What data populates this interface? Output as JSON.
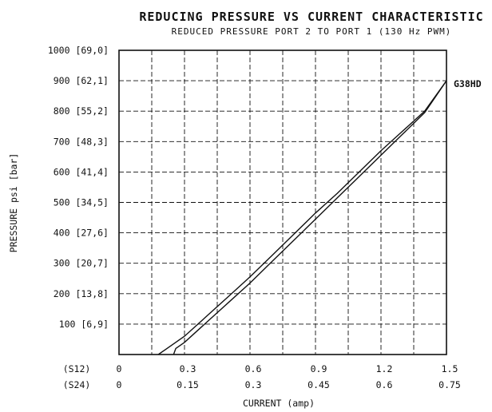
{
  "chart_data": {
    "type": "line",
    "title": "REDUCING PRESSURE VS CURRENT CHARACTERISTIC",
    "subtitle": "REDUCED PRESSURE PORT 2 TO PORT 1 (130 Hz PWM)",
    "ylabel": "PRESSURE psi [bar]",
    "xlabel": "CURRENT (amp)",
    "xlim": [
      0,
      1.5
    ],
    "ylim": [
      0,
      1000
    ],
    "grid": true,
    "y_ticks": [
      {
        "value": 100,
        "label": "100 [6,9]"
      },
      {
        "value": 200,
        "label": "200 [13,8]"
      },
      {
        "value": 300,
        "label": "300 [20,7]"
      },
      {
        "value": 400,
        "label": "400 [27,6]"
      },
      {
        "value": 500,
        "label": "500 [34,5]"
      },
      {
        "value": 600,
        "label": "600 [41,4]"
      },
      {
        "value": 700,
        "label": "700 [48,3]"
      },
      {
        "value": 800,
        "label": "800 [55,2]"
      },
      {
        "value": 900,
        "label": "900 [62,1]"
      },
      {
        "value": 1000,
        "label": "1000 [69,0]"
      }
    ],
    "x_tick_rows": [
      {
        "name": "(S12)",
        "ticks": [
          "0",
          "0.3",
          "0.6",
          "0.9",
          "1.2",
          "1.5"
        ]
      },
      {
        "name": "(S24)",
        "ticks": [
          "0",
          "0.15",
          "0.3",
          "0.45",
          "0.6",
          "0.75"
        ]
      }
    ],
    "x_tick_values": [
      0,
      0.3,
      0.6,
      0.9,
      1.2,
      1.5
    ],
    "series": [
      {
        "name": "G38HD",
        "curves": [
          {
            "x": [
              0.18,
              0.22,
              0.3,
              0.4,
              0.5,
              0.6,
              0.7,
              0.8,
              0.9,
              1.0,
              1.1,
              1.2,
              1.3,
              1.4,
              1.5
            ],
            "y": [
              0,
              20,
              60,
              125,
              190,
              255,
              325,
              395,
              465,
              530,
              600,
              670,
              735,
              800,
              900
            ]
          },
          {
            "x": [
              0.25,
              0.26,
              0.3,
              0.4,
              0.5,
              0.6,
              0.7,
              0.8,
              0.9,
              1.0,
              1.1,
              1.2,
              1.3,
              1.4,
              1.5
            ],
            "y": [
              0,
              20,
              40,
              105,
              170,
              235,
              305,
              375,
              445,
              515,
              585,
              655,
              725,
              795,
              900
            ]
          }
        ]
      }
    ]
  }
}
